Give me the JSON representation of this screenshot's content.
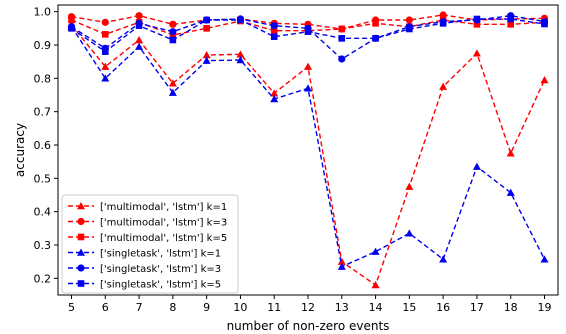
{
  "chart_data": {
    "type": "line",
    "xlabel": "number of non-zero events",
    "ylabel": "accuracy",
    "xlim": [
      4.6,
      19.4
    ],
    "ylim": [
      0.15,
      1.02
    ],
    "x": [
      5,
      6,
      7,
      8,
      9,
      10,
      11,
      12,
      13,
      14,
      15,
      16,
      17,
      18,
      19
    ],
    "xticks": [
      "5",
      "6",
      "7",
      "8",
      "9",
      "10",
      "11",
      "12",
      "13",
      "14",
      "15",
      "16",
      "17",
      "18",
      "19"
    ],
    "yticks": [
      0.2,
      0.3,
      0.4,
      0.5,
      0.6,
      0.7,
      0.8,
      0.9,
      1.0
    ],
    "ytick_labels": [
      "0.2",
      "0.3",
      "0.4",
      "0.5",
      "0.6",
      "0.7",
      "0.8",
      "0.9",
      "1.0"
    ],
    "grid": false,
    "legend_position": "lower-left",
    "series": [
      {
        "name": "['multimodal', 'lstm']  k=1",
        "color": "#ff0000",
        "marker": "triangle",
        "values": [
          0.96,
          0.835,
          0.915,
          0.785,
          0.87,
          0.872,
          0.755,
          0.835,
          0.25,
          0.18,
          0.475,
          0.775,
          0.875,
          0.575,
          0.795
        ]
      },
      {
        "name": "['multimodal', 'lstm']  k=3",
        "color": "#ff0000",
        "marker": "circle",
        "values": [
          0.985,
          0.968,
          0.988,
          0.962,
          0.975,
          0.978,
          0.965,
          0.962,
          0.948,
          0.975,
          0.975,
          0.99,
          0.975,
          0.978,
          0.98
        ]
      },
      {
        "name": "['multimodal', 'lstm']  k=5",
        "color": "#ff0000",
        "marker": "square",
        "values": [
          0.975,
          0.932,
          0.968,
          0.93,
          0.95,
          0.972,
          0.943,
          0.943,
          0.948,
          0.965,
          0.955,
          0.975,
          0.962,
          0.962,
          0.968
        ]
      },
      {
        "name": "['singletask', 'lstm']  k=1",
        "color": "#0000ee",
        "marker": "triangle",
        "values": [
          0.955,
          0.8,
          0.895,
          0.757,
          0.853,
          0.855,
          0.738,
          0.77,
          0.235,
          0.28,
          0.335,
          0.257,
          0.535,
          0.457,
          0.257
        ]
      },
      {
        "name": "['singletask', 'lstm']  k=3",
        "color": "#0000ee",
        "marker": "circle",
        "values": [
          0.955,
          0.89,
          0.965,
          0.94,
          0.975,
          0.978,
          0.958,
          0.95,
          0.858,
          0.92,
          0.955,
          0.97,
          0.975,
          0.988,
          0.97
        ]
      },
      {
        "name": "['singletask', 'lstm']  k=5",
        "color": "#0000ee",
        "marker": "square",
        "values": [
          0.95,
          0.88,
          0.958,
          0.915,
          0.975,
          0.975,
          0.925,
          0.94,
          0.92,
          0.92,
          0.948,
          0.965,
          0.978,
          0.978,
          0.963
        ]
      }
    ]
  }
}
